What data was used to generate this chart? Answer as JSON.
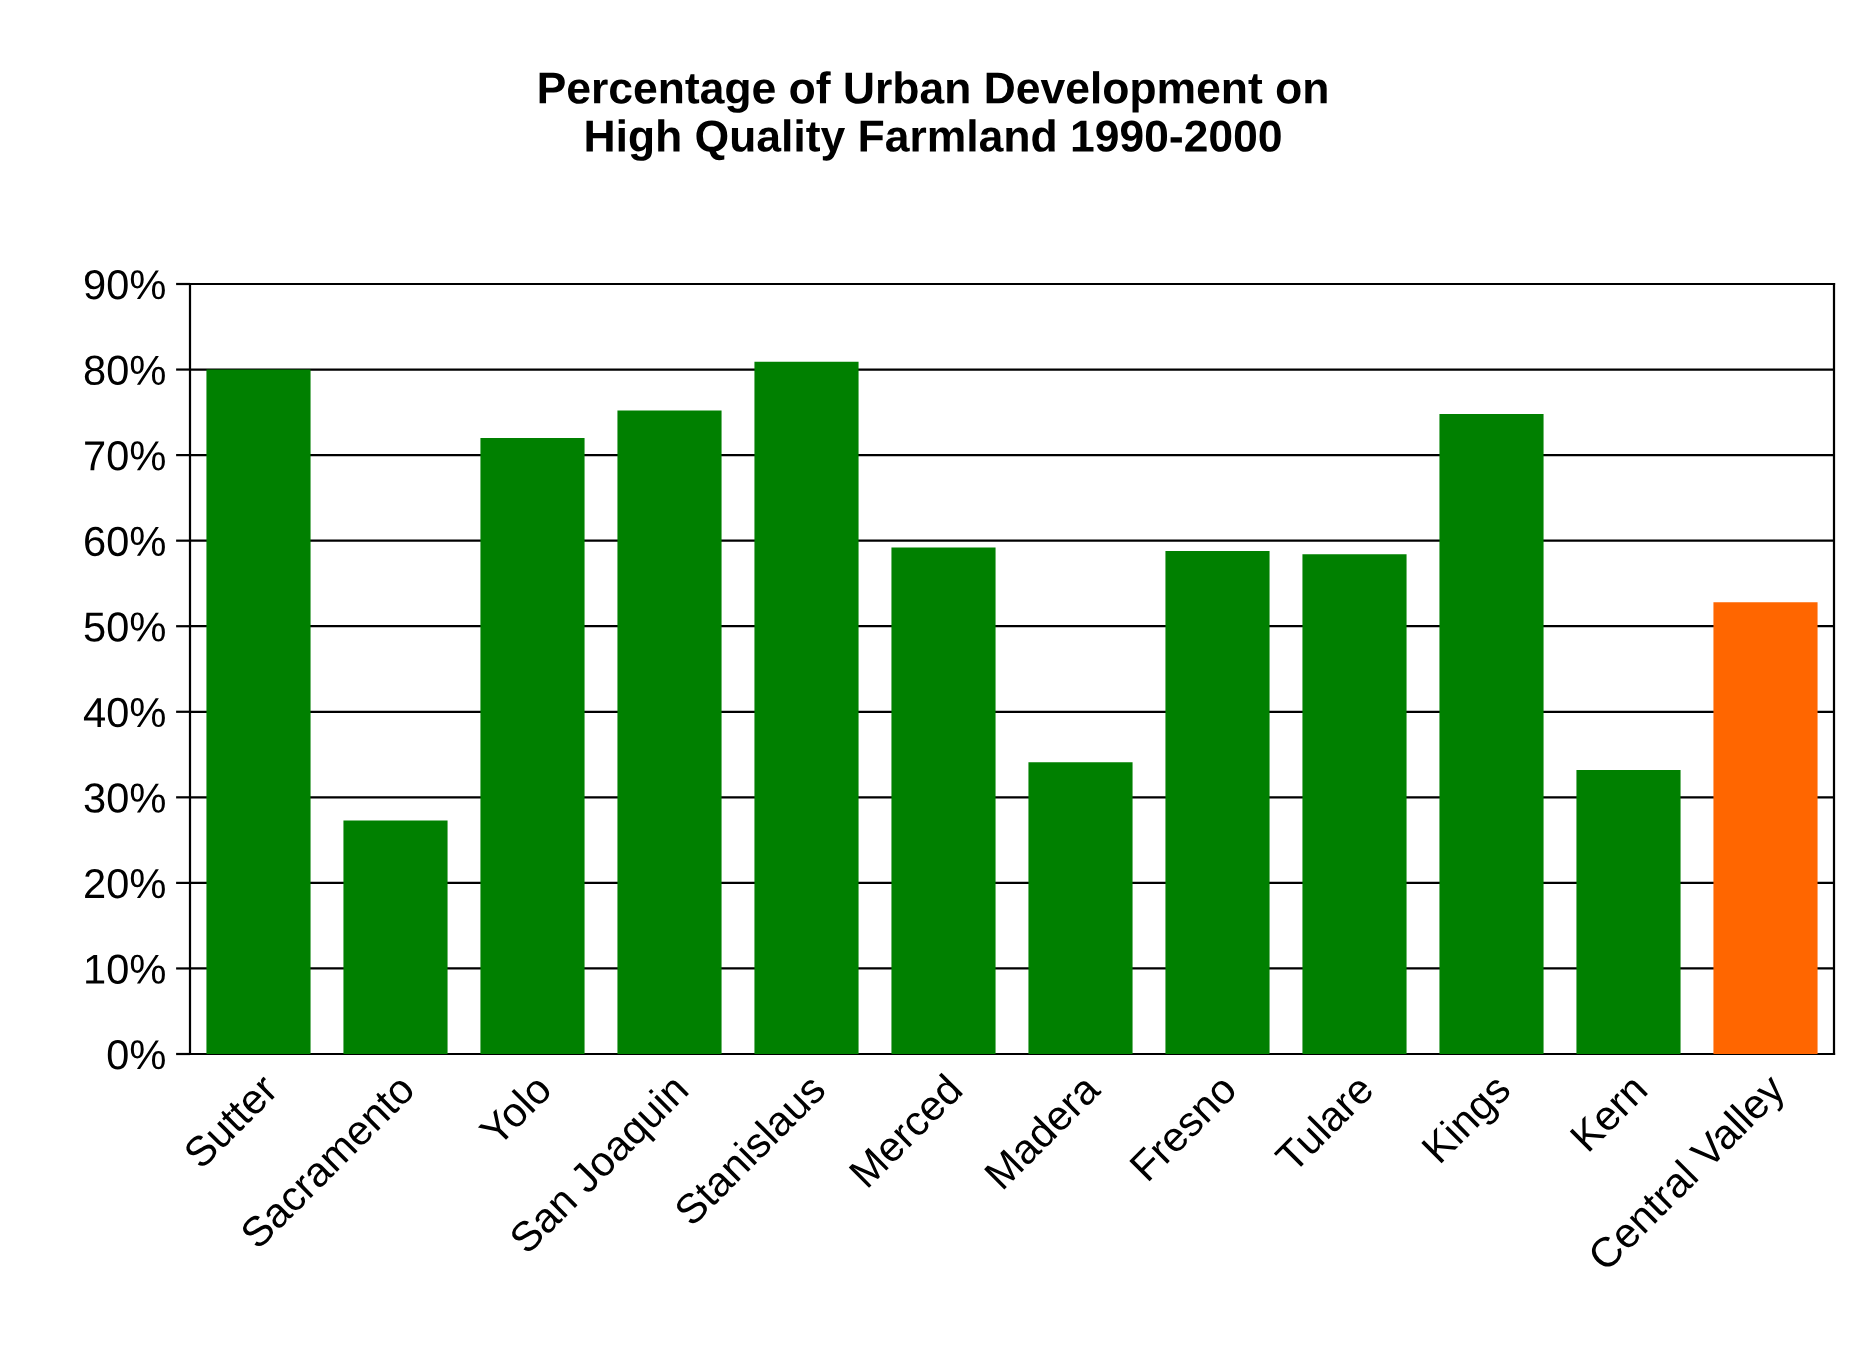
{
  "chart_data": {
    "type": "bar",
    "title": "Percentage of Urban Development on\nHigh Quality Farmland 1990-2000",
    "categories": [
      "Sutter",
      "Sacramento",
      "Yolo",
      "San Joaquin",
      "Stanislaus",
      "Merced",
      "Madera",
      "Fresno",
      "Tulare",
      "Kings",
      "Kern",
      "Central Valley"
    ],
    "values": [
      80,
      27.3,
      72,
      75.2,
      80.9,
      59.2,
      34.1,
      58.8,
      58.4,
      74.8,
      33.2,
      52.8
    ],
    "colors": [
      "#008000",
      "#008000",
      "#008000",
      "#008000",
      "#008000",
      "#008000",
      "#008000",
      "#008000",
      "#008000",
      "#008000",
      "#008000",
      "#ff6600"
    ],
    "ylim": [
      0,
      90
    ],
    "yticks": [
      {
        "value": 0,
        "label": "0%"
      },
      {
        "value": 10,
        "label": "10%"
      },
      {
        "value": 20,
        "label": "20%"
      },
      {
        "value": 30,
        "label": "30%"
      },
      {
        "value": 40,
        "label": "40%"
      },
      {
        "value": 50,
        "label": "50%"
      },
      {
        "value": 60,
        "label": "60%"
      },
      {
        "value": 70,
        "label": "70%"
      },
      {
        "value": 80,
        "label": "80%"
      },
      {
        "value": 90,
        "label": "90%"
      }
    ],
    "grid": "y"
  }
}
